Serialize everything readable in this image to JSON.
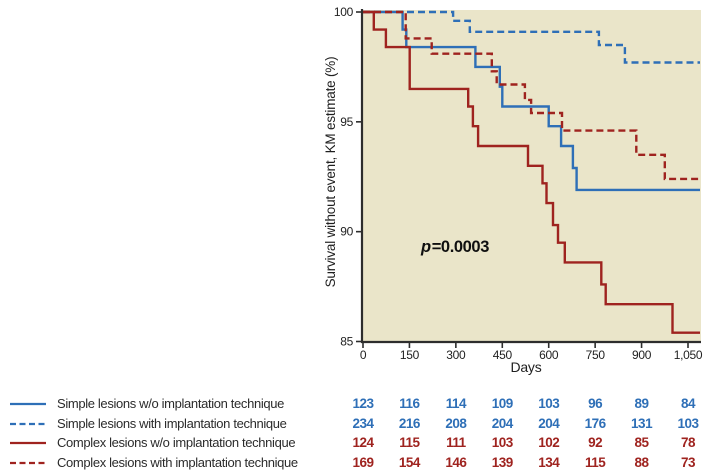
{
  "chart_data": {
    "type": "line",
    "subtype": "kaplan-meier step curves",
    "title": "",
    "xlabel": "Days",
    "ylabel": "Survival without event, KM estimate (%)",
    "xlim": [
      0,
      1050
    ],
    "ylim": [
      85,
      100
    ],
    "grid": false,
    "legend_position": "bottom-left with numbers-at-risk table",
    "x_ticks": {
      "values": [
        0,
        150,
        300,
        450,
        600,
        750,
        900,
        1050
      ],
      "labels": [
        "0",
        "150",
        "300",
        "450",
        "600",
        "750",
        "900",
        "1,050"
      ]
    },
    "y_ticks": {
      "values": [
        85,
        90,
        95,
        100
      ],
      "labels": [
        "85",
        "90",
        "95",
        "100"
      ]
    },
    "p_annotation": {
      "symbol": "p",
      "rest": "=0.0003",
      "text": "p=0.0003"
    },
    "colors": {
      "blue": "#2e6fb7",
      "red": "#9f231f",
      "plot_bg": "#eae5c9",
      "axis": "#2d2d2d",
      "text": "#2a2a2a"
    },
    "series": [
      {
        "name": "Simple lesions w/o implantation technique",
        "color": "#2e6fb7",
        "dash": "solid",
        "steps_day_pct": [
          [
            0,
            100
          ],
          [
            128,
            99.2
          ],
          [
            140,
            98.4
          ],
          [
            363,
            97.5
          ],
          [
            442,
            96.6
          ],
          [
            450,
            95.7
          ],
          [
            600,
            94.8
          ],
          [
            640,
            93.9
          ],
          [
            678,
            92.9
          ],
          [
            690,
            91.9
          ],
          [
            1050,
            91.9
          ]
        ],
        "risk_counts": [
          123,
          116,
          114,
          109,
          103,
          96,
          89,
          84
        ]
      },
      {
        "name": "Simple lesions with implantation technique",
        "color": "#2e6fb7",
        "dash": "dashed",
        "steps_day_pct": [
          [
            0,
            100
          ],
          [
            291,
            99.6
          ],
          [
            345,
            99.1
          ],
          [
            762,
            98.5
          ],
          [
            846,
            97.7
          ],
          [
            1050,
            97.7
          ]
        ],
        "risk_counts": [
          234,
          216,
          208,
          204,
          204,
          176,
          131,
          103
        ]
      },
      {
        "name": "Complex lesions w/o implantation technique",
        "color": "#9f231f",
        "dash": "solid",
        "steps_day_pct": [
          [
            0,
            100
          ],
          [
            35,
            99.2
          ],
          [
            74,
            98.4
          ],
          [
            151,
            96.5
          ],
          [
            340,
            95.7
          ],
          [
            355,
            94.8
          ],
          [
            372,
            93.9
          ],
          [
            533,
            93.0
          ],
          [
            580,
            92.2
          ],
          [
            593,
            91.3
          ],
          [
            614,
            90.3
          ],
          [
            630,
            89.5
          ],
          [
            652,
            88.6
          ],
          [
            770,
            87.6
          ],
          [
            784,
            86.7
          ],
          [
            1000,
            85.4
          ],
          [
            1050,
            85.4
          ]
        ],
        "risk_counts": [
          124,
          115,
          111,
          103,
          102,
          92,
          85,
          78
        ]
      },
      {
        "name": "Complex lesions with implantation technique",
        "color": "#9f231f",
        "dash": "dashed",
        "steps_day_pct": [
          [
            0,
            100
          ],
          [
            138,
            98.8
          ],
          [
            222,
            98.1
          ],
          [
            416,
            97.3
          ],
          [
            432,
            96.7
          ],
          [
            523,
            96.0
          ],
          [
            543,
            95.4
          ],
          [
            643,
            94.6
          ],
          [
            883,
            93.5
          ],
          [
            975,
            92.4
          ],
          [
            1050,
            92.4
          ]
        ],
        "risk_counts": [
          169,
          154,
          146,
          139,
          134,
          115,
          88,
          73
        ]
      }
    ]
  }
}
